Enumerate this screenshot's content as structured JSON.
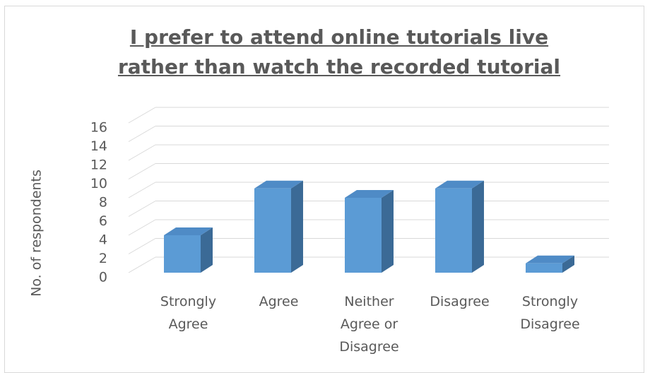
{
  "chart_data": {
    "type": "bar3d",
    "title": "I prefer to attend online tutorials live rather than watch the recorded tutorial",
    "y_axis_label": "No. of respondents",
    "categories": [
      "Strongly Agree",
      "Agree",
      "Neither Agree or Disagree",
      "Disagree",
      "Strongly Disagree"
    ],
    "values": [
      4,
      9,
      8,
      9,
      1
    ],
    "color": "#5b9bd5",
    "ylim": [
      0,
      16
    ],
    "yticks": [
      0,
      2,
      4,
      6,
      8,
      10,
      12,
      14,
      16
    ],
    "grid": true
  }
}
